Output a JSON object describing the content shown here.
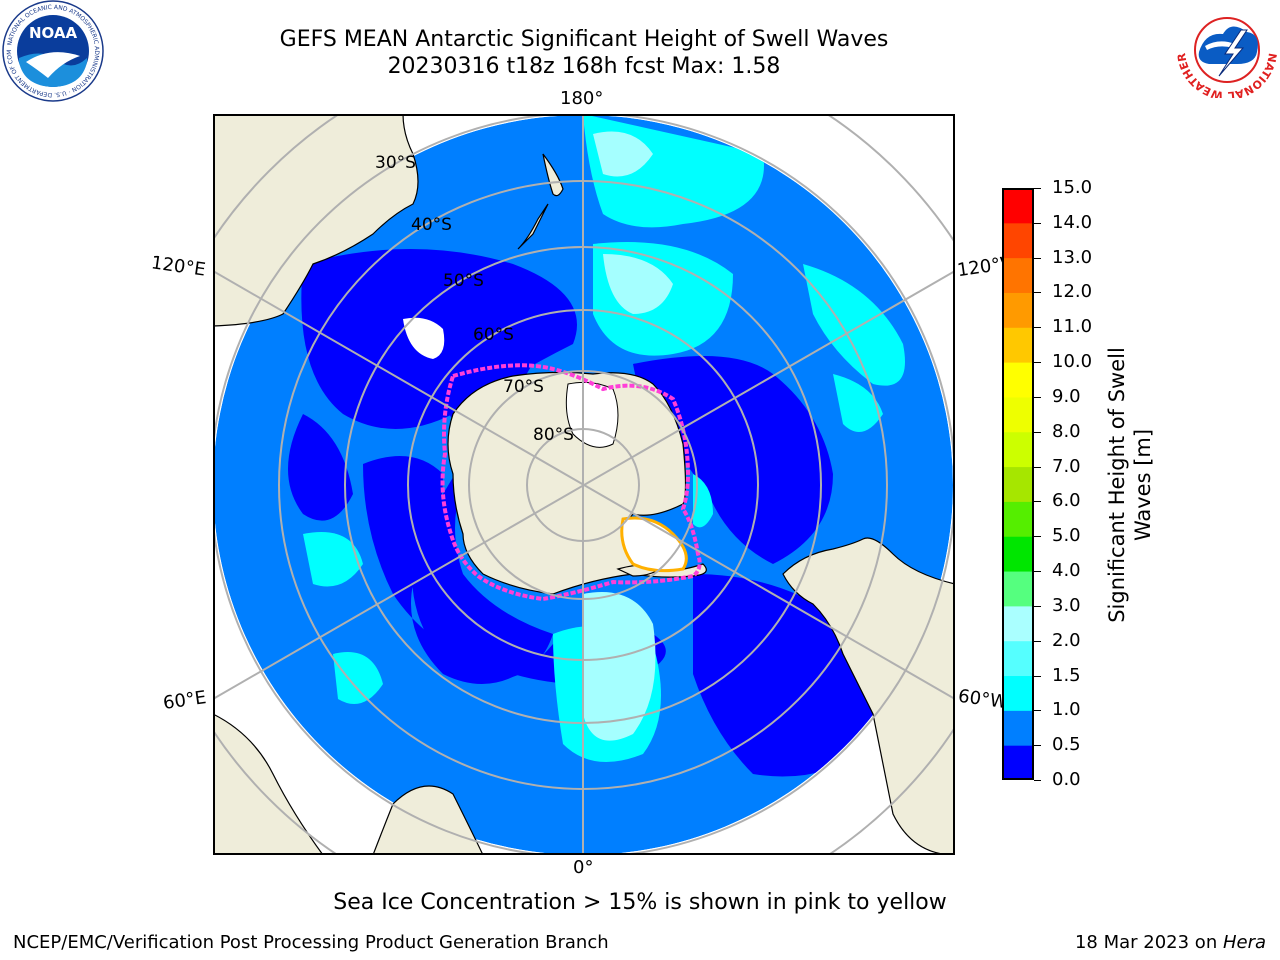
{
  "header": {
    "title_line1": "GEFS MEAN Antarctic Significant Height of Swell Waves",
    "title_line2": "20230316 t18z 168h fcst   Max: 1.58"
  },
  "logos": {
    "left": "NOAA",
    "left_ring": "NATIONAL OCEANIC AND ATMOSPHERIC ADMINISTRATION · U.S. DEPARTMENT OF COMMERCE",
    "right_ring": "NATIONAL WEATHER SERVICE"
  },
  "map": {
    "projection": "south-polar-stereographic",
    "lon_labels": {
      "top": "180°",
      "bottom": "0°",
      "upper_left": "120°E",
      "upper_right": "120°W",
      "lower_left": "60°E",
      "lower_right": "60°W"
    },
    "lat_labels": [
      "30°S",
      "40°S",
      "50°S",
      "60°S",
      "70°S",
      "80°S"
    ],
    "colors": {
      "land": "#efedda",
      "ocean_05_10": "#007fff",
      "ocean_00_05": "#0000ff",
      "ocean_10_15": "#00ffff",
      "ocean_15_20": "#a5ffff",
      "ice": "#ffffff",
      "ice_edge": "#ff4ae0",
      "grid": "#b0b0b0"
    }
  },
  "colorbar": {
    "label_line1": "Significant Height of Swell",
    "label_line2": "Waves [m]",
    "ticks": [
      "0.0",
      "0.5",
      "1.0",
      "1.5",
      "2.0",
      "3.0",
      "4.0",
      "5.0",
      "6.0",
      "7.0",
      "8.0",
      "9.0",
      "10.0",
      "11.0",
      "12.0",
      "13.0",
      "14.0",
      "15.0"
    ],
    "colors": [
      "#0000ff",
      "#007fff",
      "#00ffff",
      "#55ffff",
      "#aaffff",
      "#55ff7f",
      "#00e600",
      "#55ee00",
      "#a6e600",
      "#ccff00",
      "#eeff00",
      "#ffff00",
      "#ffc800",
      "#ff9a00",
      "#ff7400",
      "#ff4500",
      "#ff0000"
    ]
  },
  "note": "Sea Ice Concentration > 15% is shown in pink to yellow",
  "footer": {
    "left": "NCEP/EMC/Verification Post Processing Product Generation Branch",
    "right_prefix": "18 Mar 2023 on ",
    "right_host": "Hera"
  }
}
